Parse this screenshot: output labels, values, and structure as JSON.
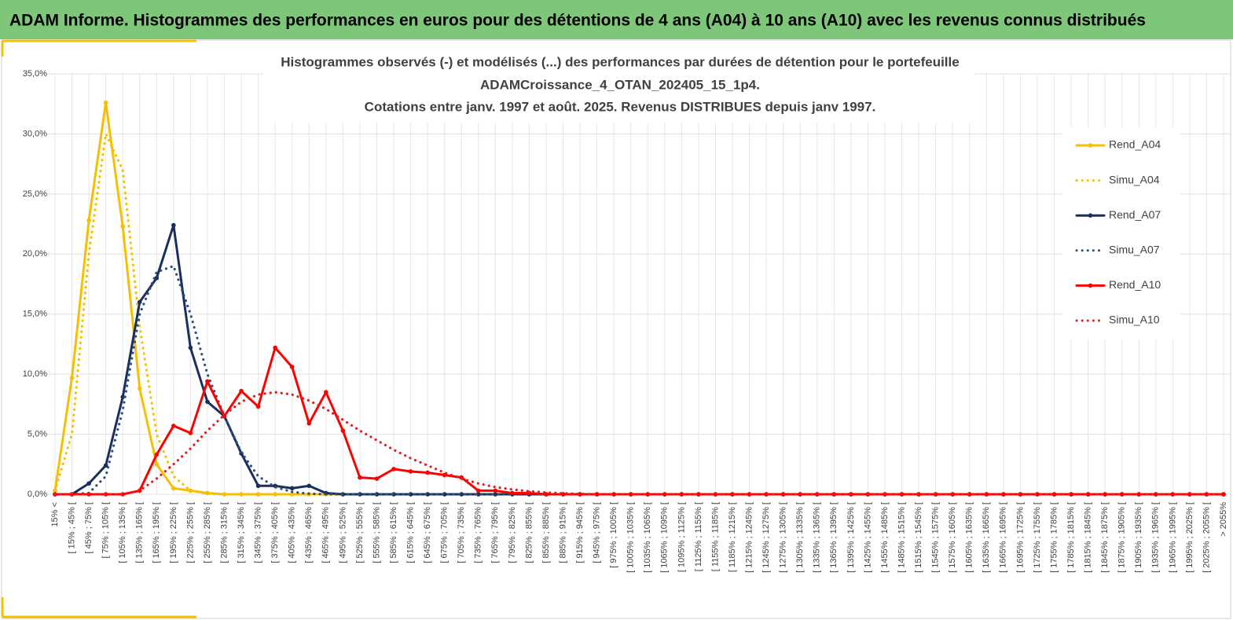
{
  "header": {
    "title": "ADAM Informe. Histogrammes des performances en euros pour des détentions de 4 ans (A04) à 10 ans (A10) avec les revenus connus distribués"
  },
  "chart_data": {
    "type": "line",
    "title": [
      "Histogrammes observés (-) et modélisés (...) des performances  par durées de détention pour le portefeuille",
      "ADAMCroissance_4_OTAN_202405_15_1p4.",
      "Cotations  entre janv. 1997 et août. 2025. Revenus DISTRIBUES depuis janv 1997."
    ],
    "categories": [
      "15% <",
      "[ 15% ; 45% [",
      "[ 45% ; 75% [",
      "[ 75% ; 105% [",
      "[ 105% ; 135% [",
      "[ 135% ; 165% [",
      "[ 165% ; 195% [",
      "[ 195% ; 225% [",
      "[ 225% ; 255% [",
      "[ 255% ; 285% [",
      "[ 285% ; 315% [",
      "[ 315% ; 345% [",
      "[ 345% ; 375% [",
      "[ 375% ; 405% [",
      "[ 405% ; 435% [",
      "[ 435% ; 465% [",
      "[ 465% ; 495% [",
      "[ 495% ; 525% [",
      "[ 525% ; 555% [",
      "[ 555% ; 585% [",
      "[ 585% ; 615% [",
      "[ 615% ; 645% [",
      "[ 645% ; 675% [",
      "[ 675% ; 705% [",
      "[ 705% ; 735% [",
      "[ 735% ; 765% [",
      "[ 765% ; 795% [",
      "[ 795% ; 825% [",
      "[ 825% ; 855% [",
      "[ 855% ; 885% [",
      "[ 885% ; 915% [",
      "[ 915% ; 945% [",
      "[ 945% ; 975% [",
      "[ 975% ; 1005% [",
      "[ 1005% ; 1035% [",
      "[ 1035% ; 1065% [",
      "[ 1065% ; 1095% [",
      "[ 1095% ; 1125% [",
      "[ 1125% ; 1155% [",
      "[ 1155% ; 1185% [",
      "[ 1185% ; 1215% [",
      "[ 1215% ; 1245% [",
      "[ 1245% ; 1275% [",
      "[ 1275% ; 1305% [",
      "[ 1305% ; 1335% [",
      "[ 1335% ; 1365% [",
      "[ 1365% ; 1395% [",
      "[ 1395% ; 1425% [",
      "[ 1425% ; 1455% [",
      "[ 1455% ; 1485% [",
      "[ 1485% ; 1515% [",
      "[ 1515% ; 1545% [",
      "[ 1545% ; 1575% [",
      "[ 1575% ; 1605% [",
      "[ 1605% ; 1635% [",
      "[ 1635% ; 1665% [",
      "[ 1665% ; 1695% [",
      "[ 1695% ; 1725% [",
      "[ 1725% ; 1755% [",
      "[ 1755% ; 1785% [",
      "[ 1785% ; 1815% [",
      "[ 1815% ; 1845% [",
      "[ 1845% ; 1875% [",
      "[ 1875% ; 1905% [",
      "[ 1905% ; 1935% [",
      "[ 1935% ; 1965% [",
      "[ 1965% ; 1995% [",
      "[ 1995% ; 2025% [",
      "[ 2025% ; 2055% [",
      "> 2055%"
    ],
    "series": [
      {
        "name": "Rend_A04",
        "color": "#f5c000",
        "style": "solid",
        "markers": true,
        "values": [
          0.3,
          9.7,
          22.8,
          32.6,
          22.3,
          8.8,
          2.5,
          0.5,
          0.3,
          0.1,
          0,
          0,
          0,
          0,
          0,
          0,
          0,
          0,
          0,
          0,
          0,
          0,
          0,
          0,
          0,
          0,
          0,
          0,
          0,
          0,
          0,
          0,
          0,
          0,
          0,
          0,
          0,
          0,
          0,
          0,
          0,
          0,
          0,
          0,
          0,
          0,
          0,
          0,
          0,
          0,
          0,
          0,
          0,
          0,
          0,
          0,
          0,
          0,
          0,
          0,
          0,
          0,
          0,
          0,
          0,
          0,
          0,
          0,
          0,
          0
        ]
      },
      {
        "name": "Simu_A04",
        "color": "#f5c000",
        "style": "dotted",
        "markers": false,
        "values": [
          0.3,
          5,
          20,
          30,
          27,
          14,
          5,
          1.5,
          0.3,
          0.05,
          0,
          0,
          0,
          0,
          0,
          0,
          0,
          0,
          0,
          0,
          0,
          0,
          0,
          0,
          0,
          0,
          0,
          0,
          0,
          0,
          0,
          0,
          0,
          0,
          0,
          0,
          0,
          0,
          0,
          0,
          0,
          0,
          0,
          0,
          0,
          0,
          0,
          0,
          0,
          0,
          0,
          0,
          0,
          0,
          0,
          0,
          0,
          0,
          0,
          0,
          0,
          0,
          0,
          0,
          0,
          0,
          0,
          0,
          0,
          0
        ]
      },
      {
        "name": "Rend_A07",
        "color": "#1a2f5e",
        "style": "solid",
        "markers": true,
        "values": [
          0,
          0,
          0.9,
          2.4,
          8.1,
          16,
          18,
          22.4,
          12.2,
          7.7,
          6.5,
          3.4,
          0.7,
          0.7,
          0.5,
          0.7,
          0.1,
          0,
          0,
          0,
          0,
          0,
          0,
          0,
          0,
          0,
          0,
          0,
          0,
          0,
          0,
          0,
          0,
          0,
          0,
          0,
          0,
          0,
          0,
          0,
          0,
          0,
          0,
          0,
          0,
          0,
          0,
          0,
          0,
          0,
          0,
          0,
          0,
          0,
          0,
          0,
          0,
          0,
          0,
          0,
          0,
          0,
          0,
          0,
          0,
          0,
          0,
          0,
          0,
          0
        ]
      },
      {
        "name": "Simu_A07",
        "color": "#2e4f7e",
        "style": "dotted",
        "markers": false,
        "values": [
          0,
          0,
          0.1,
          1.5,
          7,
          15,
          18.5,
          19,
          15,
          10,
          6.5,
          3.5,
          1.5,
          0.6,
          0.2,
          0.05,
          0,
          0,
          0,
          0,
          0,
          0,
          0,
          0,
          0,
          0,
          0,
          0,
          0,
          0,
          0,
          0,
          0,
          0,
          0,
          0,
          0,
          0,
          0,
          0,
          0,
          0,
          0,
          0,
          0,
          0,
          0,
          0,
          0,
          0,
          0,
          0,
          0,
          0,
          0,
          0,
          0,
          0,
          0,
          0,
          0,
          0,
          0,
          0,
          0,
          0,
          0,
          0,
          0,
          0
        ]
      },
      {
        "name": "Rend_A10",
        "color": "#ff0000",
        "style": "solid",
        "markers": true,
        "values": [
          0,
          0,
          0,
          0,
          0,
          0.3,
          3.3,
          5.7,
          5.1,
          9.4,
          6.5,
          8.6,
          7.3,
          12.2,
          10.6,
          5.9,
          8.5,
          5.3,
          1.4,
          1.3,
          2.1,
          1.9,
          1.8,
          1.6,
          1.4,
          0.3,
          0.3,
          0.1,
          0.1,
          0,
          0,
          0,
          0,
          0,
          0,
          0,
          0,
          0,
          0,
          0,
          0,
          0,
          0,
          0,
          0,
          0,
          0,
          0,
          0,
          0,
          0,
          0,
          0,
          0,
          0,
          0,
          0,
          0,
          0,
          0,
          0,
          0,
          0,
          0,
          0,
          0,
          0,
          0,
          0,
          0
        ]
      },
      {
        "name": "Simu_A10",
        "color": "#e02020",
        "style": "dotted",
        "markers": false,
        "values": [
          0,
          0,
          0,
          0,
          0,
          0.3,
          1.3,
          2.5,
          3.8,
          5.3,
          6.6,
          7.7,
          8.3,
          8.5,
          8.3,
          7.8,
          7.1,
          6.2,
          5.3,
          4.5,
          3.7,
          3,
          2.4,
          1.8,
          1.3,
          0.9,
          0.6,
          0.4,
          0.25,
          0.15,
          0.08,
          0.04,
          0,
          0,
          0,
          0,
          0,
          0,
          0,
          0,
          0,
          0,
          0,
          0,
          0,
          0,
          0,
          0,
          0,
          0,
          0,
          0,
          0,
          0,
          0,
          0,
          0,
          0,
          0,
          0,
          0,
          0,
          0,
          0,
          0,
          0,
          0,
          0,
          0,
          0
        ]
      }
    ],
    "ylim": [
      0,
      35
    ],
    "yticks": [
      {
        "value": 0,
        "label": "0,0%"
      },
      {
        "value": 5,
        "label": "5,0%"
      },
      {
        "value": 10,
        "label": "10,0%"
      },
      {
        "value": 15,
        "label": "15,0%"
      },
      {
        "value": 20,
        "label": "20,0%"
      },
      {
        "value": 25,
        "label": "25,0%"
      },
      {
        "value": 30,
        "label": "30,0%"
      },
      {
        "value": 35,
        "label": "35,0%"
      }
    ],
    "grid": true,
    "legend": "right"
  }
}
